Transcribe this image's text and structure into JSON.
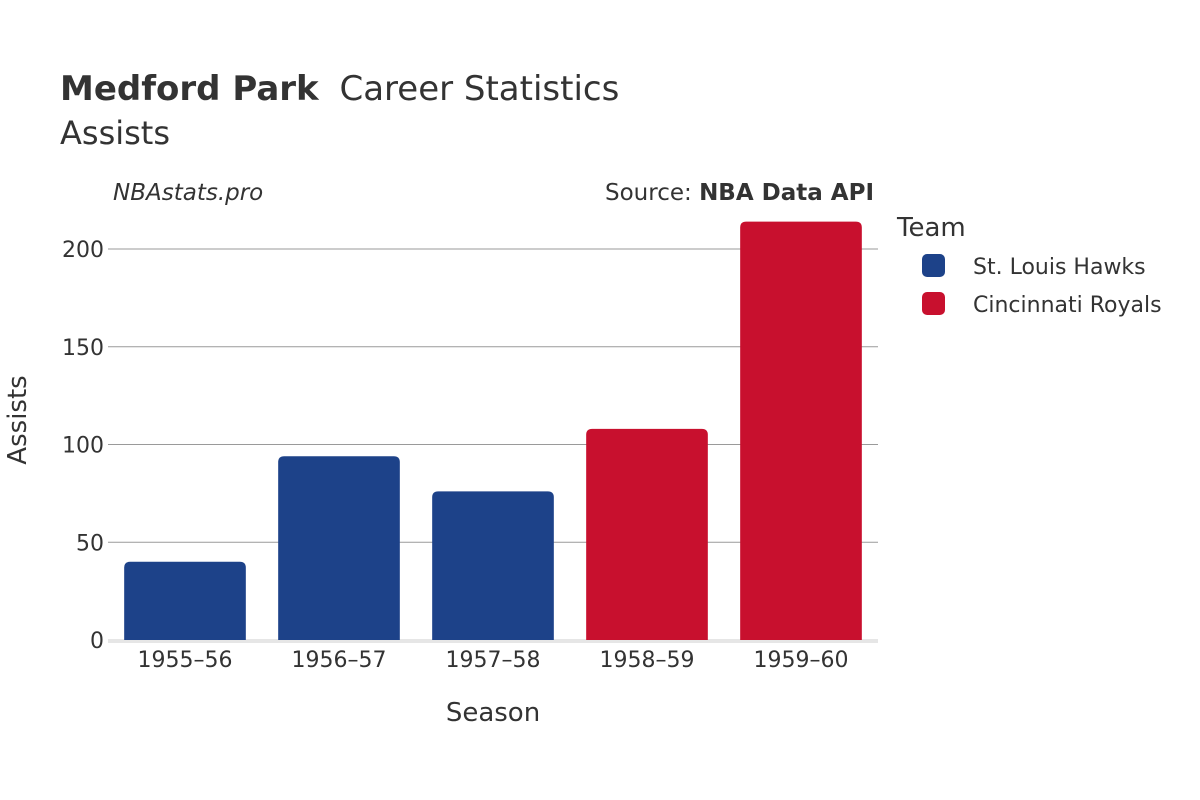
{
  "title": {
    "player": "Medford Park",
    "rest": "Career Statistics"
  },
  "subtitle": "Assists",
  "credit_left": "NBAstats.pro",
  "credit_right": {
    "prefix": "Source: ",
    "source": "NBA Data API"
  },
  "colors": {
    "St. Louis Hawks": "#1d4289",
    "Cincinnati Royals": "#c8102e"
  },
  "chart_data": {
    "type": "bar",
    "xlabel": "Season",
    "ylabel": "Assists",
    "ylim": [
      0,
      220
    ],
    "yticks": [
      0,
      50,
      100,
      150,
      200
    ],
    "grid": true,
    "legend": {
      "title": "Team",
      "placement": "right",
      "entries": [
        "St. Louis Hawks",
        "Cincinnati Royals"
      ]
    },
    "categories": [
      "1955–56",
      "1956–57",
      "1957–58",
      "1958–59",
      "1959–60"
    ],
    "bars": [
      {
        "season": "1955–56",
        "team": "St. Louis Hawks",
        "value": 40
      },
      {
        "season": "1956–57",
        "team": "St. Louis Hawks",
        "value": 94
      },
      {
        "season": "1957–58",
        "team": "St. Louis Hawks",
        "value": 76
      },
      {
        "season": "1958–59",
        "team": "Cincinnati Royals",
        "value": 108
      },
      {
        "season": "1959–60",
        "team": "Cincinnati Royals",
        "value": 214
      }
    ]
  }
}
